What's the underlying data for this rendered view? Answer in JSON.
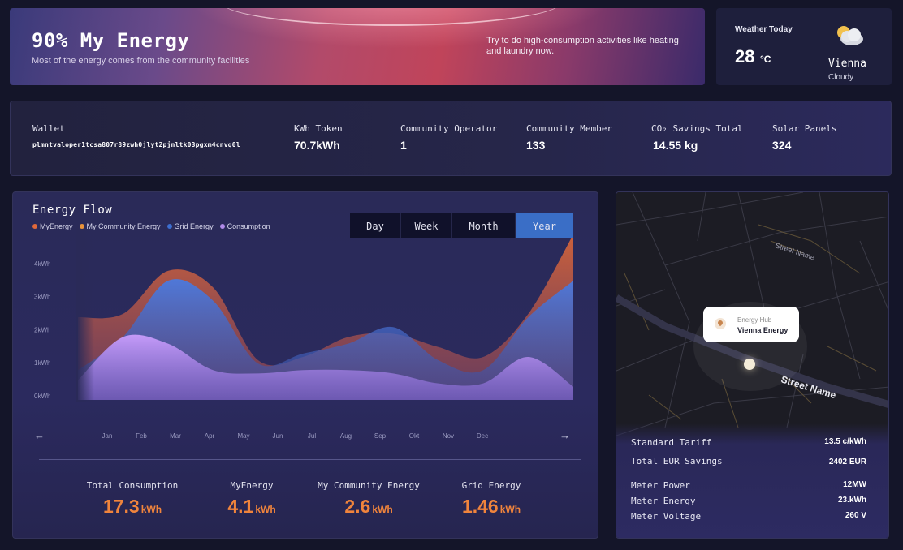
{
  "hero": {
    "title": "90% My Energy",
    "subtitle": "Most of the energy comes from the community facilities",
    "tip": "Try to do high-consumption activities like heating and laundry now."
  },
  "weather": {
    "label": "Weather Today",
    "temperature": "28",
    "unit": "°C",
    "city": "Vienna",
    "condition": "Cloudy",
    "icon": "partly-cloudy-icon"
  },
  "stats": {
    "wallet": {
      "label": "Wallet",
      "value": "plmntvaloper1tcsa807r89zwh0jlyt2pjnltk03pgxm4cnvq0l"
    },
    "token": {
      "label": "KWh Token",
      "value": "70.7kWh"
    },
    "operator": {
      "label": "Community Operator",
      "value": "1"
    },
    "member": {
      "label": "Community Member",
      "value": "133"
    },
    "co2": {
      "label": "CO₂ Savings Total",
      "value": "14.55 kg"
    },
    "solar": {
      "label": "Solar Panels",
      "value": "324"
    }
  },
  "flow": {
    "title": "Energy Flow",
    "legend": [
      {
        "name": "MyEnergy",
        "color": "#e0683a"
      },
      {
        "name": "My Community Energy",
        "color": "#e8923a"
      },
      {
        "name": "Grid Energy",
        "color": "#3c6ed0"
      },
      {
        "name": "Consumption",
        "color": "#b08ae8"
      }
    ],
    "tabs": [
      "Day",
      "Week",
      "Month",
      "Year"
    ],
    "active_tab": "Year",
    "prev": "←",
    "next": "→",
    "totals": [
      {
        "label": "Total Consumption",
        "value": "17.3",
        "unit": "kWh"
      },
      {
        "label": "MyEnergy",
        "value": "4.1",
        "unit": "kWh"
      },
      {
        "label": "My Community Energy",
        "value": "2.6",
        "unit": "kWh"
      },
      {
        "label": "Grid Energy",
        "value": "1.46",
        "unit": "kWh"
      }
    ]
  },
  "chart_data": {
    "type": "area",
    "categories": [
      "Jan",
      "Feb",
      "Mar",
      "Apr",
      "May",
      "Jun",
      "Jul",
      "Aug",
      "Sep",
      "Okt",
      "Nov",
      "Dec"
    ],
    "y_ticks": [
      "0kWh",
      "1kWh",
      "2kWh",
      "3kWh",
      "4kWh"
    ],
    "ylim": [
      0,
      5
    ],
    "series": [
      {
        "name": "MyEnergy",
        "color": "#c9603e",
        "values": [
          2.5,
          2.6,
          3.9,
          3.4,
          1.2,
          1.3,
          1.9,
          2.0,
          1.6,
          1.3,
          2.6,
          5.0
        ]
      },
      {
        "name": "Grid Energy",
        "color": "#4068c8",
        "values": [
          0.9,
          1.9,
          3.6,
          3.0,
          1.1,
          1.4,
          1.7,
          2.2,
          1.2,
          0.9,
          2.5,
          3.6
        ]
      },
      {
        "name": "Consumption",
        "color": "#b68cf0",
        "values": [
          0.6,
          1.9,
          1.7,
          0.9,
          0.8,
          0.9,
          0.9,
          0.8,
          0.5,
          0.5,
          1.3,
          0.4
        ]
      }
    ]
  },
  "map": {
    "street_1": "Street Name",
    "street_2": "Street Name",
    "hub_label": "Energy Hub",
    "hub_name": "Vienna Energy",
    "rows": [
      {
        "label": "Standard Tariff",
        "value": "13.5 c/kWh"
      },
      {
        "label": "Total EUR Savings",
        "value": "2402 EUR"
      },
      {
        "label": "Meter Power",
        "value": "12MW"
      },
      {
        "label": "Meter Energy",
        "value": "23.kWh"
      },
      {
        "label": "Meter Voltage",
        "value": "260 V"
      }
    ]
  }
}
